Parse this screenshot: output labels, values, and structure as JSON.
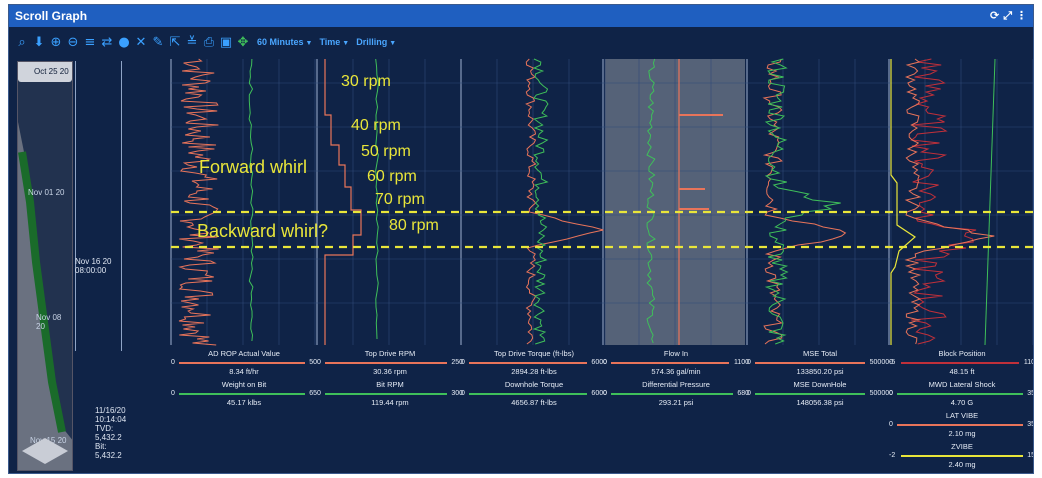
{
  "window": {
    "title": "Scroll Graph"
  },
  "toolbar": {
    "interval_label": "60 Minutes",
    "axis_label": "Time",
    "mode_label": "Drilling"
  },
  "navigator": {
    "dates": [
      "Oct 25 20",
      "Nov 01 20",
      "Nov 08 20",
      "Nov 15 20"
    ]
  },
  "time_axis": {
    "cursor_label": "Nov 16 20\n08:00:00",
    "readout": "11/16/20\n10:14:04\nTVD:\n5,432.2\nBit:\n5,432.2"
  },
  "annotations": {
    "forward": "Forward whirl",
    "backward": "Backward whirl?",
    "rpm_30": "30 rpm",
    "rpm_40": "40 rpm",
    "rpm_50": "50 rpm",
    "rpm_60": "60 rpm",
    "rpm_70": "70 rpm",
    "rpm_80": "80 rpm"
  },
  "tracks": [
    {
      "name": "AD ROP Actual Value",
      "min": "0",
      "max": "50",
      "value": "8.34 ft/hr",
      "color": "#e8745a",
      "name2": "Weight on Bit",
      "min2": "0",
      "max2": "65",
      "value2": "45.17 klbs",
      "color2": "#3fbf5a"
    },
    {
      "name": "Top Drive RPM",
      "min": "0",
      "max": "250",
      "value": "30.36 rpm",
      "color": "#e8745a",
      "name2": "Bit RPM",
      "min2": "0",
      "max2": "300",
      "value2": "119.44 rpm",
      "color2": "#3fbf5a"
    },
    {
      "name": "Top Drive Torque (ft-lbs)",
      "min": "0",
      "max": "6000",
      "value": "2894.28 ft-lbs",
      "color": "#e8745a",
      "name2": "Downhole Torque",
      "min2": "0",
      "max2": "6000",
      "value2": "4656.87 ft-lbs",
      "color2": "#3fbf5a"
    },
    {
      "name": "Flow In",
      "min": "0",
      "max": "1100",
      "value": "574.36 gal/min",
      "color": "#e8745a",
      "name2": "Differential Pressure",
      "min2": "0",
      "max2": "680",
      "value2": "293.21 psi",
      "color2": "#3fbf5a"
    },
    {
      "name": "MSE Total",
      "min": "0",
      "max": "500000",
      "value": "133850.20 psi",
      "color": "#e8745a",
      "name2": "MSE DownHole",
      "min2": "0",
      "max2": "500000",
      "value2": "148056.38 psi",
      "color2": "#3fbf5a"
    },
    {
      "name": "Block Position",
      "min": "-5",
      "max": "110",
      "value": "48.15 ft",
      "color": "#c0303a",
      "name2": "MWD Lateral Shock",
      "min2": "0",
      "max2": "35",
      "value2": "4.70 G",
      "color2": "#3fbf5a",
      "name3": "LAT VIBE",
      "min3": "0",
      "max3": "35",
      "value3": "2.10 mg",
      "color3": "#e8745a",
      "name4": "ZVIBE",
      "min4": "-2",
      "max4": "15",
      "value4": "2.40 mg",
      "color4": "#e9e63a"
    }
  ]
}
